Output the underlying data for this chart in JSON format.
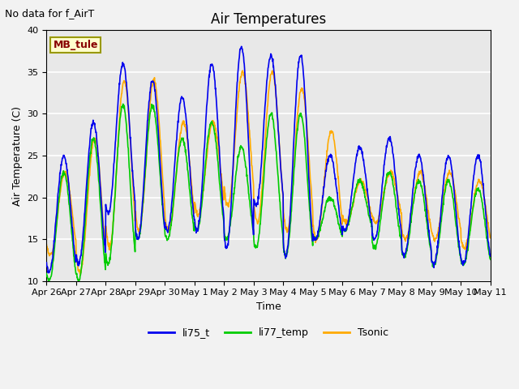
{
  "title": "Air Temperatures",
  "subtitle": "No data for f_AirT",
  "xlabel": "Time",
  "ylabel": "Air Temperature (C)",
  "ylim": [
    10,
    40
  ],
  "xlim": [
    0,
    360
  ],
  "plot_bg": "#e8e8e8",
  "fig_bg": "#f2f2f2",
  "grid_color": "#ffffff",
  "series": {
    "li75_t": {
      "color": "#0000ee",
      "lw": 1.2
    },
    "li77_temp": {
      "color": "#00cc00",
      "lw": 1.2
    },
    "Tsonic": {
      "color": "#ffaa00",
      "lw": 1.2
    }
  },
  "xtick_labels": [
    "Apr 26",
    "Apr 27",
    "Apr 28",
    "Apr 29",
    "Apr 30",
    "May 1",
    "May 2",
    "May 3",
    "May 4",
    "May 5",
    "May 6",
    "May 7",
    "May 8",
    "May 9",
    "May 10",
    "May 11"
  ],
  "xtick_positions": [
    0,
    24,
    48,
    72,
    96,
    120,
    144,
    168,
    192,
    216,
    240,
    264,
    288,
    312,
    336,
    360
  ],
  "ytick_labels": [
    "10",
    "15",
    "20",
    "25",
    "30",
    "35",
    "40"
  ],
  "ytick_positions": [
    10,
    15,
    20,
    25,
    30,
    35,
    40
  ],
  "legend_label": "MB_tule",
  "legend_color": "#880000",
  "legend_bg": "#ffffcc",
  "legend_border": "#999900",
  "annot_fontsize": 9,
  "title_fontsize": 12,
  "tick_fontsize": 8,
  "label_fontsize": 9
}
